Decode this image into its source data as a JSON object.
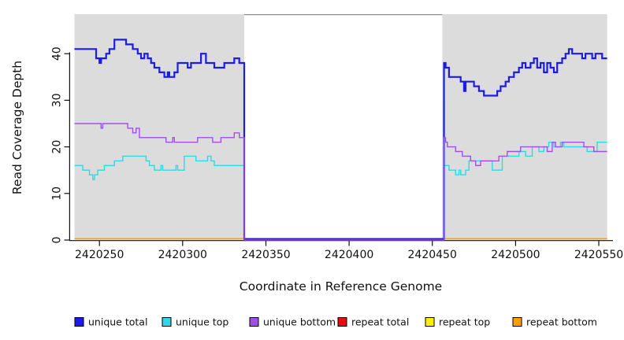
{
  "chart_data": {
    "type": "line",
    "subtype": "step-coverage-plot",
    "title": "",
    "xlabel": "Coordinate in Reference Genome",
    "ylabel": "Read Coverage Depth",
    "xlim": [
      2420235,
      2420555
    ],
    "ylim": [
      0,
      48.5
    ],
    "x_ticks": [
      2420250,
      2420300,
      2420350,
      2420400,
      2420450,
      2420500,
      2420550
    ],
    "y_ticks": [
      0,
      10,
      20,
      30,
      40
    ],
    "grid": "off",
    "plot_bg": "#ffffff",
    "shaded_regions": [
      {
        "name": "covered-left",
        "x0": 2420235,
        "x1": 2420337,
        "color": "#dcdcdc"
      },
      {
        "name": "covered-right",
        "x0": 2420456,
        "x1": 2420555,
        "color": "#dcdcdc"
      }
    ],
    "gap_region": {
      "x0": 2420337,
      "x1": 2420456,
      "top_border_color": "#8f8f8f"
    },
    "legend": {
      "position": "bottom",
      "entries": [
        {
          "label": "unique total",
          "color": "#1c1ce8"
        },
        {
          "label": "unique top",
          "color": "#2fd9e2"
        },
        {
          "label": "unique bottom",
          "color": "#a24fe8"
        },
        {
          "label": "repeat total",
          "color": "#e01010"
        },
        {
          "label": "repeat top",
          "color": "#ffee00"
        },
        {
          "label": "repeat bottom",
          "color": "#ffa200"
        }
      ]
    },
    "series": [
      {
        "name": "unique total",
        "color": "#1c1ce8",
        "steps": [
          [
            2420235,
            41
          ],
          [
            2420248,
            39
          ],
          [
            2420250,
            38
          ],
          [
            2420251,
            39
          ],
          [
            2420254,
            40
          ],
          [
            2420256,
            41
          ],
          [
            2420259,
            43
          ],
          [
            2420266,
            42
          ],
          [
            2420270,
            41
          ],
          [
            2420273,
            40
          ],
          [
            2420275,
            39
          ],
          [
            2420277,
            40
          ],
          [
            2420279,
            39
          ],
          [
            2420281,
            38
          ],
          [
            2420283,
            37
          ],
          [
            2420286,
            36
          ],
          [
            2420289,
            35
          ],
          [
            2420291,
            36
          ],
          [
            2420292,
            35
          ],
          [
            2420295,
            36
          ],
          [
            2420297,
            38
          ],
          [
            2420303,
            37
          ],
          [
            2420305,
            38
          ],
          [
            2420311,
            40
          ],
          [
            2420314,
            38
          ],
          [
            2420319,
            37
          ],
          [
            2420325,
            38
          ],
          [
            2420331,
            39
          ],
          [
            2420334,
            38
          ],
          [
            2420337,
            0
          ],
          [
            2420457,
            38
          ],
          [
            2420458,
            37
          ],
          [
            2420460,
            35
          ],
          [
            2420467,
            34
          ],
          [
            2420469,
            32
          ],
          [
            2420470,
            34
          ],
          [
            2420475,
            33
          ],
          [
            2420478,
            32
          ],
          [
            2420481,
            31
          ],
          [
            2420489,
            32
          ],
          [
            2420491,
            33
          ],
          [
            2420494,
            34
          ],
          [
            2420496,
            35
          ],
          [
            2420499,
            36
          ],
          [
            2420502,
            37
          ],
          [
            2420504,
            38
          ],
          [
            2420506,
            37
          ],
          [
            2420509,
            38
          ],
          [
            2420511,
            39
          ],
          [
            2420513,
            37
          ],
          [
            2420515,
            38
          ],
          [
            2420517,
            36
          ],
          [
            2420519,
            38
          ],
          [
            2420521,
            37
          ],
          [
            2420523,
            36
          ],
          [
            2420525,
            38
          ],
          [
            2420528,
            39
          ],
          [
            2420530,
            40
          ],
          [
            2420532,
            41
          ],
          [
            2420534,
            40
          ],
          [
            2420540,
            39
          ],
          [
            2420542,
            40
          ],
          [
            2420546,
            39
          ],
          [
            2420548,
            40
          ],
          [
            2420552,
            39
          ]
        ]
      },
      {
        "name": "unique top",
        "color": "#2fd9e2",
        "steps": [
          [
            2420235,
            16
          ],
          [
            2420240,
            15
          ],
          [
            2420244,
            14
          ],
          [
            2420246,
            13
          ],
          [
            2420247,
            14
          ],
          [
            2420249,
            15
          ],
          [
            2420253,
            16
          ],
          [
            2420259,
            17
          ],
          [
            2420264,
            18
          ],
          [
            2420278,
            17
          ],
          [
            2420280,
            16
          ],
          [
            2420283,
            15
          ],
          [
            2420287,
            16
          ],
          [
            2420288,
            15
          ],
          [
            2420296,
            16
          ],
          [
            2420297,
            15
          ],
          [
            2420301,
            18
          ],
          [
            2420308,
            17
          ],
          [
            2420315,
            18
          ],
          [
            2420317,
            17
          ],
          [
            2420319,
            16
          ],
          [
            2420337,
            0
          ],
          [
            2420457,
            16
          ],
          [
            2420460,
            15
          ],
          [
            2420464,
            14
          ],
          [
            2420466,
            15
          ],
          [
            2420467,
            14
          ],
          [
            2420470,
            15
          ],
          [
            2420472,
            17
          ],
          [
            2420486,
            15
          ],
          [
            2420492,
            18
          ],
          [
            2420502,
            19
          ],
          [
            2420506,
            18
          ],
          [
            2420510,
            20
          ],
          [
            2420514,
            19
          ],
          [
            2420517,
            20
          ],
          [
            2420520,
            21
          ],
          [
            2420523,
            20
          ],
          [
            2420527,
            21
          ],
          [
            2420529,
            20
          ],
          [
            2420543,
            19
          ],
          [
            2420549,
            21
          ]
        ]
      },
      {
        "name": "unique bottom",
        "color": "#a24fe8",
        "steps": [
          [
            2420235,
            25
          ],
          [
            2420251,
            24
          ],
          [
            2420252,
            25
          ],
          [
            2420267,
            24
          ],
          [
            2420270,
            23
          ],
          [
            2420272,
            24
          ],
          [
            2420274,
            22
          ],
          [
            2420290,
            21
          ],
          [
            2420294,
            22
          ],
          [
            2420295,
            21
          ],
          [
            2420309,
            22
          ],
          [
            2420318,
            21
          ],
          [
            2420323,
            22
          ],
          [
            2420331,
            23
          ],
          [
            2420334,
            22
          ],
          [
            2420337,
            0
          ],
          [
            2420457,
            22
          ],
          [
            2420458,
            21
          ],
          [
            2420459,
            20
          ],
          [
            2420464,
            19
          ],
          [
            2420468,
            18
          ],
          [
            2420473,
            17
          ],
          [
            2420476,
            16
          ],
          [
            2420479,
            17
          ],
          [
            2420490,
            18
          ],
          [
            2420495,
            19
          ],
          [
            2420503,
            20
          ],
          [
            2420519,
            19
          ],
          [
            2420522,
            21
          ],
          [
            2420524,
            20
          ],
          [
            2420528,
            21
          ],
          [
            2420541,
            20
          ],
          [
            2420547,
            19
          ]
        ]
      },
      {
        "name": "repeat total",
        "color": "#e01010",
        "steps": [
          [
            2420235,
            0
          ]
        ]
      },
      {
        "name": "repeat top",
        "color": "#ffee00",
        "steps": [
          [
            2420235,
            0
          ]
        ]
      },
      {
        "name": "repeat bottom",
        "color": "#ffa200",
        "steps": [
          [
            2420235,
            0
          ]
        ]
      }
    ]
  }
}
